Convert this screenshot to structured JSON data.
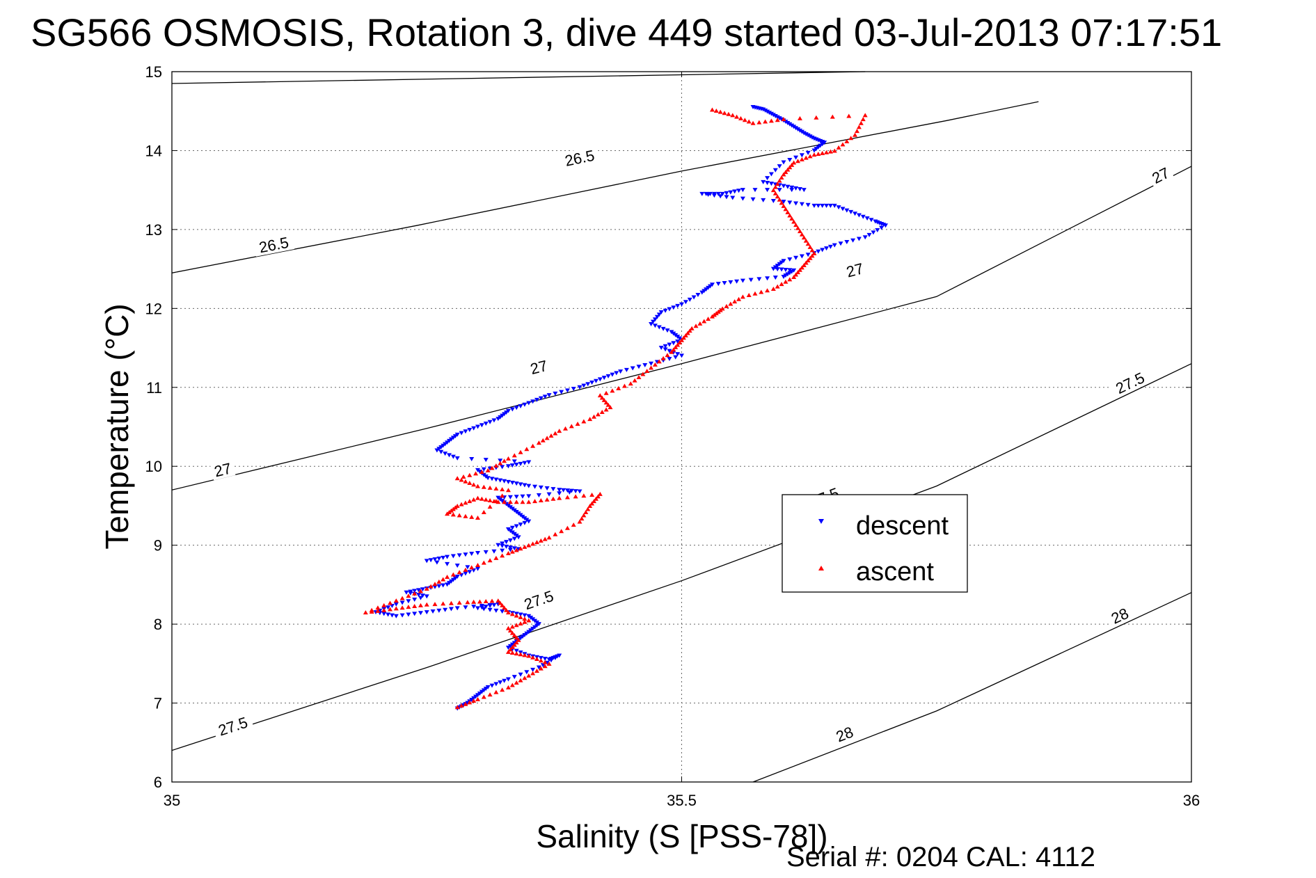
{
  "chart_data": {
    "type": "scatter",
    "title": "SG566 OSMOSIS, Rotation 3, dive 449 started 03-Jul-2013 07:17:51",
    "xlabel": "Salinity (S [PSS-78])",
    "ylabel": "Temperature (°C)",
    "xlim": [
      35,
      36
    ],
    "ylim": [
      6,
      15
    ],
    "xticks": [
      "35",
      "35.5",
      "36"
    ],
    "yticks": [
      "6",
      "7",
      "8",
      "9",
      "10",
      "11",
      "12",
      "13",
      "14",
      "15"
    ],
    "grid": true,
    "legend_position": "lower-right inside",
    "footer": "Serial #: 0204  CAL: 4112",
    "contours": [
      {
        "level": "26.5",
        "points": [
          [
            35.0,
            14.85
          ],
          [
            35.68,
            15.0
          ]
        ],
        "labels": []
      },
      {
        "level": "26.5",
        "points": [
          [
            35.0,
            12.45
          ],
          [
            35.24,
            13.05
          ],
          [
            35.5,
            13.74
          ],
          [
            35.76,
            14.38
          ],
          [
            35.85,
            14.62
          ]
        ],
        "labels": [
          [
            35.1,
            12.8
          ],
          [
            35.4,
            13.9
          ]
        ]
      },
      {
        "level": "27",
        "points": [
          [
            35.0,
            9.7
          ],
          [
            35.25,
            10.48
          ],
          [
            35.5,
            11.3
          ],
          [
            35.75,
            12.15
          ],
          [
            36.0,
            13.8
          ]
        ],
        "labels": [
          [
            35.05,
            9.95
          ],
          [
            35.36,
            11.25
          ],
          [
            35.67,
            12.48
          ],
          [
            35.97,
            13.68
          ]
        ]
      },
      {
        "level": "27.5",
        "points": [
          [
            35.0,
            6.4
          ],
          [
            35.25,
            7.45
          ],
          [
            35.5,
            8.55
          ],
          [
            35.75,
            9.75
          ],
          [
            36.0,
            11.3
          ]
        ],
        "labels": [
          [
            35.06,
            6.7
          ],
          [
            35.36,
            8.3
          ],
          [
            35.64,
            9.6
          ],
          [
            35.94,
            11.05
          ]
        ]
      },
      {
        "level": "28",
        "points": [
          [
            35.57,
            6.0
          ],
          [
            35.75,
            6.9
          ],
          [
            36.0,
            8.4
          ]
        ],
        "labels": [
          [
            35.66,
            6.6
          ],
          [
            35.93,
            8.1
          ]
        ]
      }
    ],
    "series": [
      {
        "name": "descent",
        "marker": "triangle-down",
        "color": "#0000ff",
        "points": [
          [
            35.57,
            14.55
          ],
          [
            35.58,
            14.52
          ],
          [
            35.59,
            14.45
          ],
          [
            35.6,
            14.38
          ],
          [
            35.61,
            14.3
          ],
          [
            35.62,
            14.22
          ],
          [
            35.63,
            14.15
          ],
          [
            35.64,
            14.1
          ],
          [
            35.63,
            14.0
          ],
          [
            35.6,
            13.85
          ],
          [
            35.58,
            13.6
          ],
          [
            35.6,
            13.55
          ],
          [
            35.62,
            13.5
          ],
          [
            35.56,
            13.5
          ],
          [
            35.54,
            13.45
          ],
          [
            35.52,
            13.45
          ],
          [
            35.55,
            13.4
          ],
          [
            35.6,
            13.35
          ],
          [
            35.63,
            13.3
          ],
          [
            35.65,
            13.3
          ],
          [
            35.67,
            13.2
          ],
          [
            35.69,
            13.1
          ],
          [
            35.7,
            13.05
          ],
          [
            35.68,
            12.9
          ],
          [
            35.65,
            12.8
          ],
          [
            35.63,
            12.7
          ],
          [
            35.6,
            12.6
          ],
          [
            35.59,
            12.5
          ],
          [
            35.61,
            12.48
          ],
          [
            35.6,
            12.4
          ],
          [
            35.56,
            12.35
          ],
          [
            35.53,
            12.3
          ],
          [
            35.52,
            12.2
          ],
          [
            35.5,
            12.05
          ],
          [
            35.48,
            11.95
          ],
          [
            35.47,
            11.8
          ],
          [
            35.49,
            11.7
          ],
          [
            35.5,
            11.6
          ],
          [
            35.48,
            11.5
          ],
          [
            35.5,
            11.4
          ],
          [
            35.47,
            11.3
          ],
          [
            35.44,
            11.2
          ],
          [
            35.42,
            11.1
          ],
          [
            35.4,
            11.0
          ],
          [
            35.37,
            10.9
          ],
          [
            35.35,
            10.8
          ],
          [
            35.33,
            10.7
          ],
          [
            35.32,
            10.6
          ],
          [
            35.3,
            10.5
          ],
          [
            35.28,
            10.4
          ],
          [
            35.27,
            10.3
          ],
          [
            35.26,
            10.2
          ],
          [
            35.28,
            10.1
          ],
          [
            35.35,
            10.05
          ],
          [
            35.33,
            10.0
          ],
          [
            35.3,
            9.95
          ],
          [
            35.31,
            9.85
          ],
          [
            35.33,
            9.8
          ],
          [
            35.35,
            9.75
          ],
          [
            35.38,
            9.7
          ],
          [
            35.4,
            9.68
          ],
          [
            35.35,
            9.62
          ],
          [
            35.32,
            9.6
          ],
          [
            35.33,
            9.5
          ],
          [
            35.34,
            9.4
          ],
          [
            35.35,
            9.3
          ],
          [
            35.33,
            9.2
          ],
          [
            35.34,
            9.1
          ],
          [
            35.32,
            9.0
          ],
          [
            35.34,
            8.95
          ],
          [
            35.3,
            8.9
          ],
          [
            35.27,
            8.85
          ],
          [
            35.25,
            8.8
          ],
          [
            35.3,
            8.7
          ],
          [
            35.28,
            8.6
          ],
          [
            35.27,
            8.5
          ],
          [
            35.25,
            8.45
          ],
          [
            35.23,
            8.4
          ],
          [
            35.25,
            8.35
          ],
          [
            35.22,
            8.25
          ],
          [
            35.2,
            8.15
          ],
          [
            35.22,
            8.1
          ],
          [
            35.25,
            8.15
          ],
          [
            35.28,
            8.2
          ],
          [
            35.32,
            8.25
          ],
          [
            35.3,
            8.2
          ],
          [
            35.33,
            8.15
          ],
          [
            35.35,
            8.1
          ],
          [
            35.36,
            8.0
          ],
          [
            35.35,
            7.9
          ],
          [
            35.34,
            7.8
          ],
          [
            35.33,
            7.7
          ],
          [
            35.35,
            7.6
          ],
          [
            35.37,
            7.55
          ],
          [
            35.38,
            7.6
          ],
          [
            35.36,
            7.45
          ],
          [
            35.33,
            7.3
          ],
          [
            35.31,
            7.2
          ],
          [
            35.3,
            7.1
          ],
          [
            35.29,
            7.0
          ],
          [
            35.28,
            6.93
          ]
        ]
      },
      {
        "name": "ascent",
        "marker": "triangle-up",
        "color": "#ff0000",
        "points": [
          [
            35.28,
            6.95
          ],
          [
            35.3,
            7.05
          ],
          [
            35.33,
            7.2
          ],
          [
            35.35,
            7.35
          ],
          [
            35.37,
            7.5
          ],
          [
            35.35,
            7.6
          ],
          [
            35.33,
            7.65
          ],
          [
            35.34,
            7.8
          ],
          [
            35.33,
            7.95
          ],
          [
            35.35,
            8.05
          ],
          [
            35.33,
            8.15
          ],
          [
            35.32,
            8.3
          ],
          [
            35.29,
            8.28
          ],
          [
            35.25,
            8.25
          ],
          [
            35.22,
            8.2
          ],
          [
            35.19,
            8.15
          ],
          [
            35.22,
            8.3
          ],
          [
            35.25,
            8.45
          ],
          [
            35.27,
            8.6
          ],
          [
            35.3,
            8.75
          ],
          [
            35.33,
            8.9
          ],
          [
            35.35,
            9.0
          ],
          [
            35.37,
            9.1
          ],
          [
            35.4,
            9.3
          ],
          [
            35.41,
            9.5
          ],
          [
            35.42,
            9.65
          ],
          [
            35.38,
            9.6
          ],
          [
            35.35,
            9.55
          ],
          [
            35.32,
            9.55
          ],
          [
            35.3,
            9.6
          ],
          [
            35.28,
            9.5
          ],
          [
            35.27,
            9.4
          ],
          [
            35.3,
            9.35
          ],
          [
            35.33,
            9.7
          ],
          [
            35.3,
            9.75
          ],
          [
            35.28,
            9.85
          ],
          [
            35.31,
            9.95
          ],
          [
            35.33,
            10.1
          ],
          [
            35.36,
            10.3
          ],
          [
            35.38,
            10.45
          ],
          [
            35.41,
            10.6
          ],
          [
            35.43,
            10.75
          ],
          [
            35.42,
            10.9
          ],
          [
            35.45,
            11.05
          ],
          [
            35.47,
            11.25
          ],
          [
            35.49,
            11.45
          ],
          [
            35.5,
            11.6
          ],
          [
            35.51,
            11.75
          ],
          [
            35.53,
            11.9
          ],
          [
            35.54,
            12.0
          ],
          [
            35.56,
            12.15
          ],
          [
            35.59,
            12.25
          ],
          [
            35.61,
            12.4
          ],
          [
            35.62,
            12.55
          ],
          [
            35.63,
            12.7
          ],
          [
            35.62,
            12.9
          ],
          [
            35.61,
            13.1
          ],
          [
            35.6,
            13.3
          ],
          [
            35.59,
            13.5
          ],
          [
            35.6,
            13.7
          ],
          [
            35.61,
            13.85
          ],
          [
            35.63,
            13.95
          ],
          [
            35.65,
            14.0
          ],
          [
            35.67,
            14.2
          ],
          [
            35.68,
            14.45
          ],
          [
            35.6,
            14.4
          ],
          [
            35.57,
            14.35
          ],
          [
            35.55,
            14.45
          ],
          [
            35.53,
            14.52
          ]
        ]
      }
    ]
  }
}
